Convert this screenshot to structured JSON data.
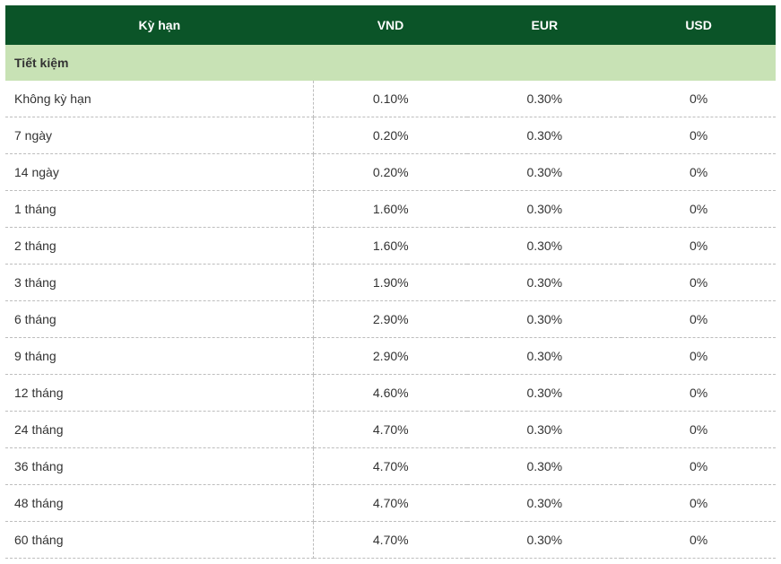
{
  "table": {
    "type": "table",
    "header_bg_color": "#0b5428",
    "header_text_color": "#ffffff",
    "section_bg_color": "#c8e2b5",
    "row_bg_color": "#ffffff",
    "border_color": "#bdbdbd",
    "text_color": "#333333",
    "font_family": "Arial",
    "header_font_size": 14,
    "cell_font_size": 14,
    "column_widths_pct": [
      40,
      20,
      20,
      20
    ],
    "columns": [
      "Kỳ hạn",
      "VND",
      "EUR",
      "USD"
    ],
    "section_label": "Tiết kiệm",
    "rows": [
      {
        "term": "Không kỳ hạn",
        "vnd": "0.10%",
        "eur": "0.30%",
        "usd": "0%"
      },
      {
        "term": "7 ngày",
        "vnd": "0.20%",
        "eur": "0.30%",
        "usd": "0%"
      },
      {
        "term": "14 ngày",
        "vnd": "0.20%",
        "eur": "0.30%",
        "usd": "0%"
      },
      {
        "term": "1 tháng",
        "vnd": "1.60%",
        "eur": "0.30%",
        "usd": "0%"
      },
      {
        "term": "2 tháng",
        "vnd": "1.60%",
        "eur": "0.30%",
        "usd": "0%"
      },
      {
        "term": "3 tháng",
        "vnd": "1.90%",
        "eur": "0.30%",
        "usd": "0%"
      },
      {
        "term": "6 tháng",
        "vnd": "2.90%",
        "eur": "0.30%",
        "usd": "0%"
      },
      {
        "term": "9 tháng",
        "vnd": "2.90%",
        "eur": "0.30%",
        "usd": "0%"
      },
      {
        "term": "12 tháng",
        "vnd": "4.60%",
        "eur": "0.30%",
        "usd": "0%"
      },
      {
        "term": "24 tháng",
        "vnd": "4.70%",
        "eur": "0.30%",
        "usd": "0%"
      },
      {
        "term": "36 tháng",
        "vnd": "4.70%",
        "eur": "0.30%",
        "usd": "0%"
      },
      {
        "term": "48 tháng",
        "vnd": "4.70%",
        "eur": "0.30%",
        "usd": "0%"
      },
      {
        "term": "60 tháng",
        "vnd": "4.70%",
        "eur": "0.30%",
        "usd": "0%"
      }
    ]
  }
}
